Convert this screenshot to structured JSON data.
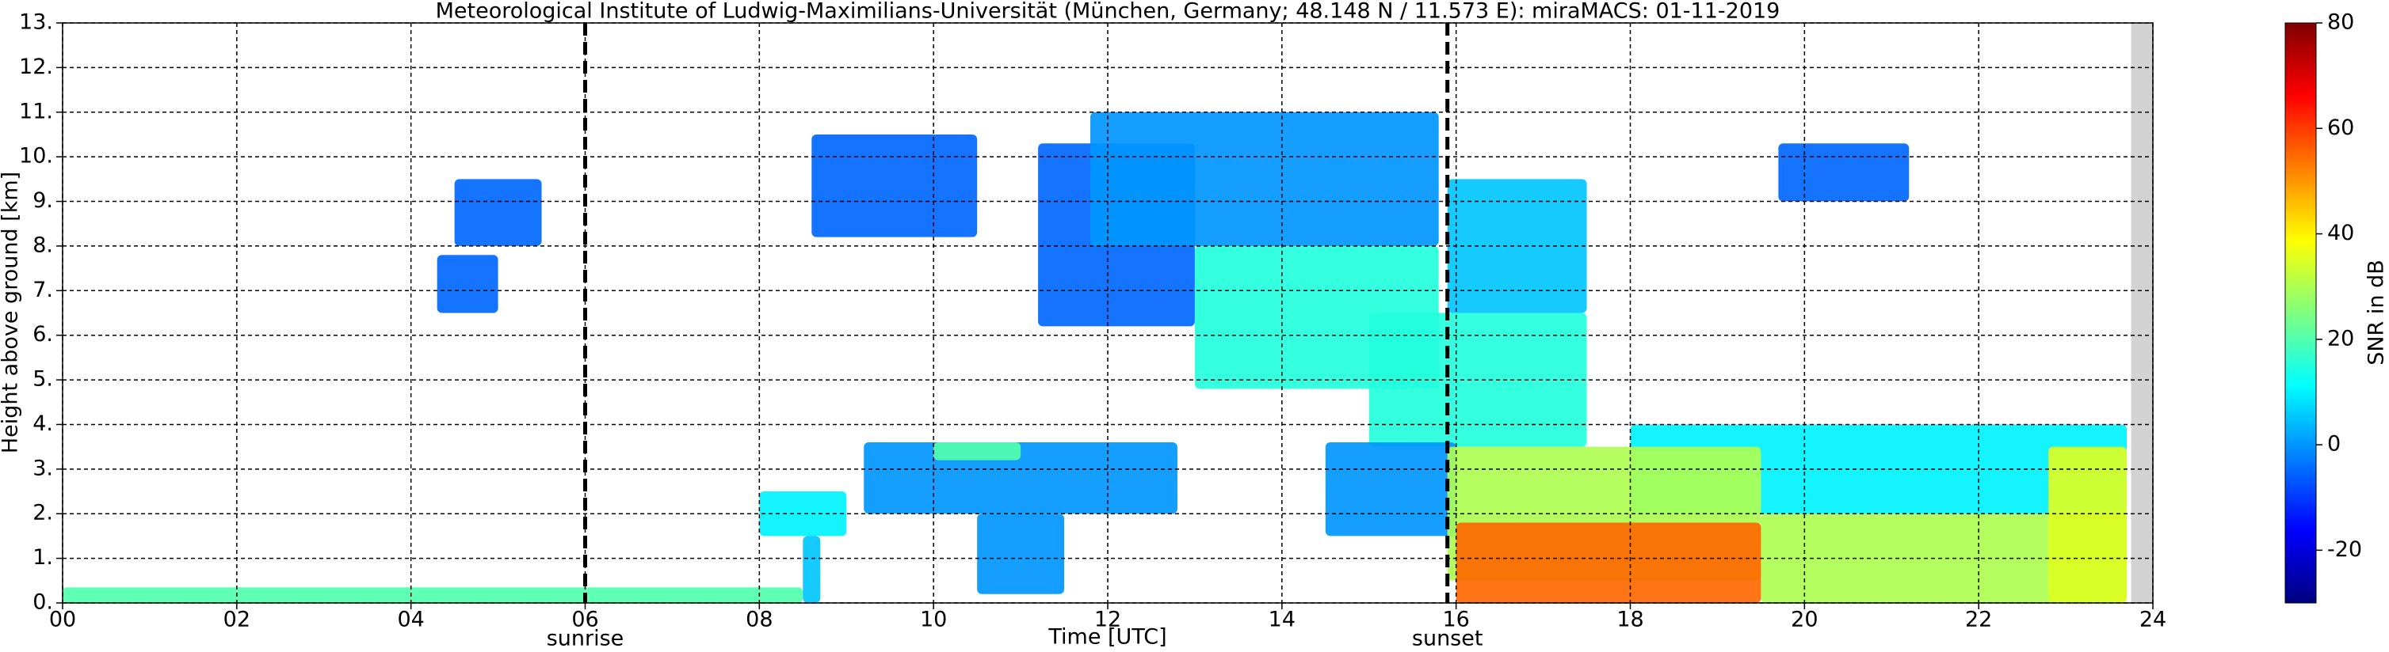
{
  "chart_data": {
    "type": "heatmap",
    "title": "Meteorological Institute of Ludwig-Maximilians-Universität (München, Germany; 48.148 N / 11.573 E):    miraMACS: 01-11-2019",
    "xlabel": "Time [UTC]",
    "ylabel": "Height above ground [km]",
    "xlim": [
      0,
      24
    ],
    "ylim": [
      0,
      13
    ],
    "xticks": [
      {
        "value": 0,
        "label": "00"
      },
      {
        "value": 2,
        "label": "02"
      },
      {
        "value": 4,
        "label": "04"
      },
      {
        "value": 6,
        "label": "06"
      },
      {
        "value": 8,
        "label": "08"
      },
      {
        "value": 10,
        "label": "10"
      },
      {
        "value": 12,
        "label": "12"
      },
      {
        "value": 14,
        "label": "14"
      },
      {
        "value": 16,
        "label": "16"
      },
      {
        "value": 18,
        "label": "18"
      },
      {
        "value": 20,
        "label": "20"
      },
      {
        "value": 22,
        "label": "22"
      },
      {
        "value": 24,
        "label": "24"
      }
    ],
    "yticks": [
      {
        "value": 0,
        "label": "0."
      },
      {
        "value": 1,
        "label": "1."
      },
      {
        "value": 2,
        "label": "2."
      },
      {
        "value": 3,
        "label": "3."
      },
      {
        "value": 4,
        "label": "4."
      },
      {
        "value": 5,
        "label": "5."
      },
      {
        "value": 6,
        "label": "6."
      },
      {
        "value": 7,
        "label": "7."
      },
      {
        "value": 8,
        "label": "8."
      },
      {
        "value": 9,
        "label": "9."
      },
      {
        "value": 10,
        "label": "10."
      },
      {
        "value": 11,
        "label": "11."
      },
      {
        "value": 12,
        "label": "12."
      },
      {
        "value": 13,
        "label": "13."
      }
    ],
    "grid": true,
    "annotations": [
      {
        "x": 6.0,
        "label": "sunrise"
      },
      {
        "x": 15.9,
        "label": "sunset"
      }
    ],
    "colorbar": {
      "label": "SNR in dB",
      "lim": [
        -30,
        80
      ],
      "ticks": [
        -20,
        0,
        20,
        40,
        60,
        80
      ]
    },
    "colormap": [
      "#00007f",
      "#0000ff",
      "#007fff",
      "#00ffff",
      "#7fff7f",
      "#ffff00",
      "#ff7f00",
      "#ff0000",
      "#7f0000"
    ],
    "regions": [
      {
        "x": [
          0,
          8.5
        ],
        "y": [
          0,
          0.35
        ],
        "value": 20
      },
      {
        "x": [
          4.3,
          5.0
        ],
        "y": [
          6.5,
          7.8
        ],
        "value": -5
      },
      {
        "x": [
          4.5,
          5.5
        ],
        "y": [
          8.0,
          9.5
        ],
        "value": -5
      },
      {
        "x": [
          8.0,
          9.0
        ],
        "y": [
          1.5,
          2.5
        ],
        "value": 10
      },
      {
        "x": [
          8.5,
          8.7
        ],
        "y": [
          0,
          1.5
        ],
        "value": 5
      },
      {
        "x": [
          8.6,
          10.5
        ],
        "y": [
          8.2,
          10.5
        ],
        "value": -5
      },
      {
        "x": [
          9.2,
          12.8
        ],
        "y": [
          2.0,
          3.6
        ],
        "value": 0
      },
      {
        "x": [
          10.0,
          11.0
        ],
        "y": [
          3.2,
          3.6
        ],
        "value": 20
      },
      {
        "x": [
          10.5,
          11.5
        ],
        "y": [
          0.2,
          2.0
        ],
        "value": 0
      },
      {
        "x": [
          11.2,
          13.0
        ],
        "y": [
          6.2,
          10.3
        ],
        "value": -5
      },
      {
        "x": [
          11.8,
          15.8
        ],
        "y": [
          8.0,
          11.0
        ],
        "value": 0
      },
      {
        "x": [
          13.0,
          15.8
        ],
        "y": [
          4.8,
          8.0
        ],
        "value": 15
      },
      {
        "x": [
          15.9,
          17.5
        ],
        "y": [
          6.5,
          9.5
        ],
        "value": 5
      },
      {
        "x": [
          15.0,
          17.5
        ],
        "y": [
          3.5,
          6.5
        ],
        "value": 15
      },
      {
        "x": [
          14.5,
          16.0
        ],
        "y": [
          1.5,
          3.6
        ],
        "value": 0
      },
      {
        "x": [
          18.0,
          23.7
        ],
        "y": [
          2.0,
          4.0
        ],
        "value": 10
      },
      {
        "x": [
          15.9,
          19.5
        ],
        "y": [
          0.5,
          3.5
        ],
        "value": 30
      },
      {
        "x": [
          19.5,
          23.7
        ],
        "y": [
          0,
          2.0
        ],
        "value": 30
      },
      {
        "x": [
          16.0,
          19.5
        ],
        "y": [
          0,
          1.8
        ],
        "value": 55
      },
      {
        "x": [
          19.7,
          21.2
        ],
        "y": [
          9.0,
          10.3
        ],
        "value": -5
      },
      {
        "x": [
          22.8,
          23.7
        ],
        "y": [
          0,
          3.5
        ],
        "value": 35
      }
    ]
  }
}
